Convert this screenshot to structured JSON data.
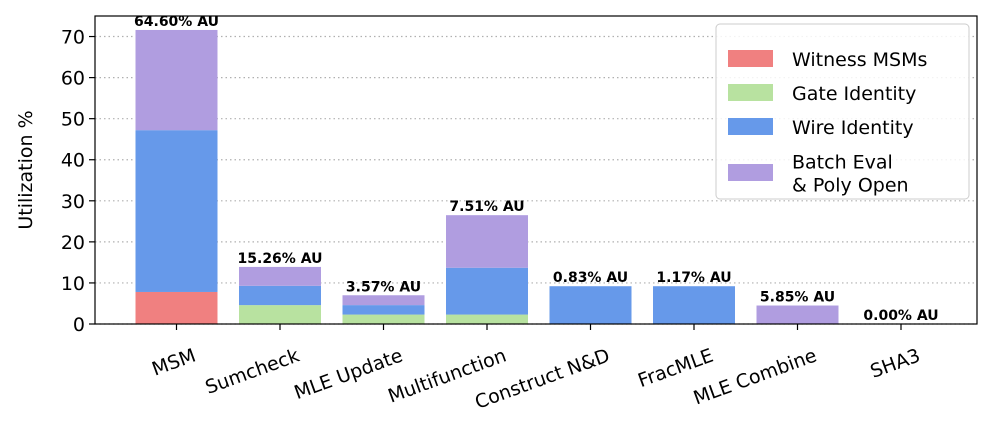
{
  "chart_data": {
    "type": "bar",
    "stacked": true,
    "categories": [
      "MSM",
      "Sumcheck",
      "MLE Update",
      "Multifunction",
      "Construct N&D",
      "FracMLE",
      "MLE Combine",
      "SHA3"
    ],
    "series": [
      {
        "name": "Witness MSMs",
        "color": "#f08080",
        "values": [
          7.8,
          0,
          0,
          0,
          0,
          0,
          0,
          0
        ]
      },
      {
        "name": "Gate Identity",
        "color": "#b8e2a0",
        "values": [
          0,
          4.6,
          2.3,
          2.3,
          0,
          0,
          0,
          0
        ]
      },
      {
        "name": "Wire Identity",
        "color": "#6699ea",
        "values": [
          39.4,
          4.7,
          2.3,
          11.4,
          9.2,
          9.2,
          0,
          0
        ]
      },
      {
        "name": "Batch Eval\n& Poly Open",
        "color": "#b09de0",
        "values": [
          24.4,
          4.6,
          2.4,
          12.8,
          0,
          0,
          4.5,
          0
        ]
      }
    ],
    "bar_labels": [
      "64.60% AU",
      "15.26% AU",
      "3.57% AU",
      "7.51% AU",
      "0.83% AU",
      "1.17% AU",
      "5.85% AU",
      "0.00% AU"
    ],
    "ylabel": "Utilization %",
    "xlabel": "",
    "ylim": [
      0,
      75
    ],
    "yticks": [
      0,
      10,
      20,
      30,
      40,
      50,
      60,
      70
    ],
    "grid": "horizontal dotted",
    "legend_position": "top-right"
  }
}
